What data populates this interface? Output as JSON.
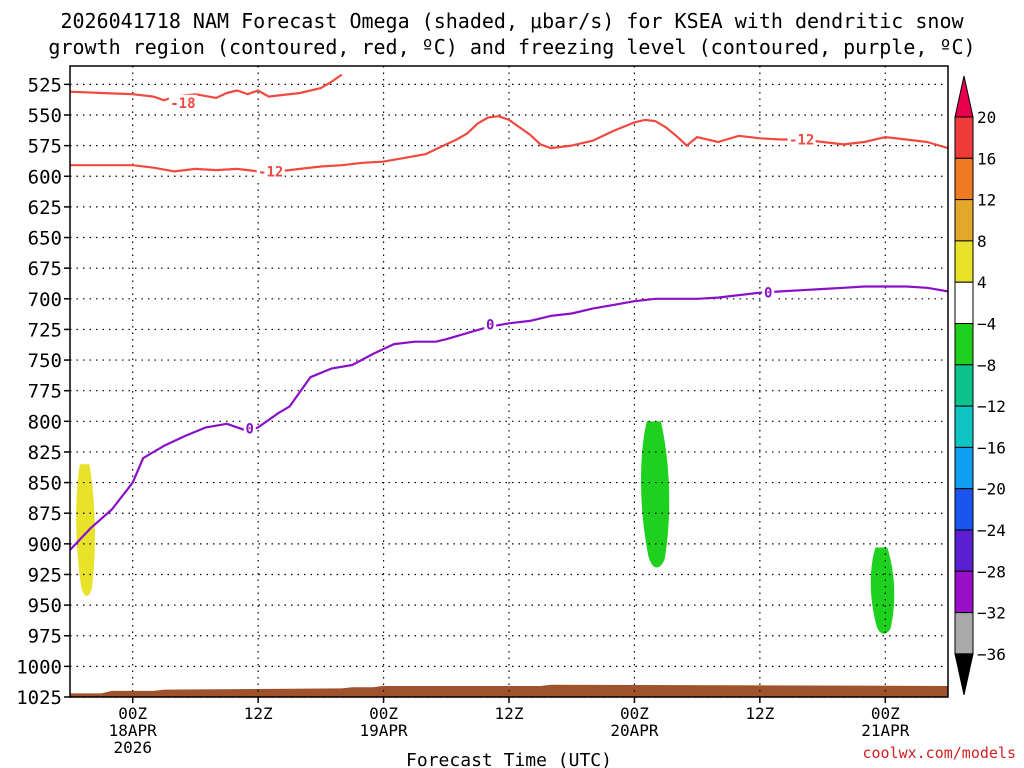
{
  "title_line1": "2026041718 NAM Forecast Omega (shaded, μbar/s) for KSEA with dendritic snow",
  "title_line2": "growth region (contoured, red, ºC) and freezing level (contoured, purple, ºC)",
  "credit": "coolwx.com/models",
  "chart_data": {
    "type": "time-height cross section",
    "xlabel": "Forecast Time (UTC)",
    "x_ticks": [
      {
        "hour": 6,
        "label": "00Z",
        "sub1": "18APR",
        "sub2": "2026"
      },
      {
        "hour": 18,
        "label": "12Z"
      },
      {
        "hour": 30,
        "label": "00Z",
        "sub1": "19APR"
      },
      {
        "hour": 42,
        "label": "12Z"
      },
      {
        "hour": 54,
        "label": "00Z",
        "sub1": "20APR"
      },
      {
        "hour": 66,
        "label": "12Z"
      },
      {
        "hour": 78,
        "label": "00Z",
        "sub1": "21APR"
      }
    ],
    "xlim": [
      0,
      84
    ],
    "ylim_hPa": [
      1025,
      510
    ],
    "y_ticks": [
      525,
      550,
      575,
      600,
      625,
      650,
      675,
      700,
      725,
      750,
      775,
      800,
      825,
      850,
      875,
      900,
      925,
      950,
      975,
      1000,
      1025
    ],
    "grid": true,
    "colorbar": {
      "labels": [
        "20",
        "16",
        "12",
        "8",
        "4",
        "−4",
        "−8",
        "−12",
        "−16",
        "−20",
        "−24",
        "−28",
        "−32",
        "−36"
      ],
      "colors": [
        "#e8004f",
        "#f03b3b",
        "#f07a22",
        "#e2a82a",
        "#e8e22a",
        "#ffffff",
        "#1fd11f",
        "#0dc38b",
        "#10c4c4",
        "#109ef0",
        "#1a55ee",
        "#5a1fd0",
        "#9a10c8",
        "#aaaaaa",
        "#000000"
      ]
    },
    "omega_shading": [
      {
        "color": "#e8e22a",
        "range": "4 to 8",
        "hours": [
          0.5,
          2.5
        ],
        "p_top": 835,
        "p_bottom": 945
      },
      {
        "color": "#1fd11f",
        "range": "-4 to -8",
        "hours": [
          54.5,
          57.5
        ],
        "p_top": 800,
        "p_bottom": 922
      },
      {
        "color": "#1fd11f",
        "range": "-4 to -8",
        "hours": [
          76.5,
          79.0
        ],
        "p_top": 903,
        "p_bottom": 975
      }
    ],
    "series": [
      {
        "name": "-18",
        "color": "#f04a40",
        "points": [
          [
            0,
            531
          ],
          [
            3,
            532
          ],
          [
            6,
            533
          ],
          [
            8,
            535
          ],
          [
            9,
            538
          ],
          [
            10,
            535
          ],
          [
            12,
            533
          ],
          [
            14,
            536
          ],
          [
            15,
            532
          ],
          [
            16,
            530
          ],
          [
            17,
            533
          ],
          [
            18,
            530
          ],
          [
            19,
            535
          ],
          [
            20,
            534
          ],
          [
            22,
            532
          ],
          [
            24,
            528
          ],
          [
            25,
            523
          ],
          [
            26,
            517
          ]
        ]
      },
      {
        "name": "-12",
        "color": "#f04a40",
        "points": [
          [
            0,
            591
          ],
          [
            3,
            591
          ],
          [
            6,
            591
          ],
          [
            8,
            593
          ],
          [
            10,
            596
          ],
          [
            12,
            594
          ],
          [
            14,
            595
          ],
          [
            16,
            594
          ],
          [
            18,
            596
          ],
          [
            20,
            596
          ],
          [
            22,
            594
          ],
          [
            24,
            592
          ],
          [
            26,
            591
          ],
          [
            28,
            589
          ],
          [
            30,
            588
          ],
          [
            32,
            585
          ],
          [
            34,
            582
          ],
          [
            35,
            578
          ],
          [
            37,
            570
          ],
          [
            38,
            565
          ],
          [
            39,
            557
          ],
          [
            40,
            552
          ],
          [
            41,
            551
          ],
          [
            42,
            554
          ],
          [
            44,
            566
          ],
          [
            45,
            574
          ],
          [
            46,
            577
          ],
          [
            48,
            575
          ],
          [
            50,
            571
          ],
          [
            52,
            563
          ],
          [
            54,
            556
          ],
          [
            55,
            554
          ],
          [
            56,
            555
          ],
          [
            57,
            560
          ],
          [
            58,
            567
          ],
          [
            59,
            575
          ],
          [
            60,
            568
          ],
          [
            62,
            572
          ],
          [
            64,
            567
          ],
          [
            66,
            569
          ],
          [
            68,
            570
          ],
          [
            70,
            570
          ],
          [
            72,
            572
          ],
          [
            74,
            574
          ],
          [
            76,
            572
          ],
          [
            78,
            568
          ],
          [
            80,
            570
          ],
          [
            82,
            572
          ],
          [
            84,
            577
          ]
        ]
      },
      {
        "name": "0",
        "color": "#8a10c8",
        "points": [
          [
            0,
            905
          ],
          [
            2,
            887
          ],
          [
            4,
            872
          ],
          [
            6,
            850
          ],
          [
            7,
            830
          ],
          [
            9,
            820
          ],
          [
            11,
            812
          ],
          [
            13,
            805
          ],
          [
            15,
            802
          ],
          [
            17,
            808
          ],
          [
            18,
            805
          ],
          [
            20,
            793
          ],
          [
            21,
            788
          ],
          [
            22,
            776
          ],
          [
            23,
            764
          ],
          [
            25,
            757
          ],
          [
            27,
            754
          ],
          [
            29,
            745
          ],
          [
            31,
            737
          ],
          [
            33,
            735
          ],
          [
            35,
            735
          ],
          [
            36,
            733
          ],
          [
            38,
            728
          ],
          [
            40,
            723
          ],
          [
            42,
            720
          ],
          [
            44,
            718
          ],
          [
            46,
            714
          ],
          [
            48,
            712
          ],
          [
            50,
            708
          ],
          [
            52,
            705
          ],
          [
            54,
            702
          ],
          [
            56,
            700
          ],
          [
            58,
            700
          ],
          [
            60,
            700
          ],
          [
            62,
            699
          ],
          [
            64,
            697
          ],
          [
            66,
            695
          ],
          [
            68,
            694
          ],
          [
            70,
            693
          ],
          [
            72,
            692
          ],
          [
            74,
            691
          ],
          [
            76,
            690
          ],
          [
            78,
            690
          ],
          [
            80,
            690
          ],
          [
            82,
            691
          ],
          [
            84,
            694
          ]
        ]
      }
    ],
    "contour_labels": [
      {
        "text": "-18",
        "hour": 10.8,
        "p": 540
      },
      {
        "text": "-12",
        "hour": 19.2,
        "p": 596
      },
      {
        "text": "-12",
        "hour": 70.0,
        "p": 570
      },
      {
        "text": "0",
        "hour": 17.2,
        "p": 806
      },
      {
        "text": "0",
        "hour": 40.2,
        "p": 721
      },
      {
        "text": "0",
        "hour": 66.8,
        "p": 695
      }
    ],
    "terrain": {
      "color": "#a0522d",
      "points": [
        [
          0,
          1022
        ],
        [
          3,
          1022
        ],
        [
          4,
          1020
        ],
        [
          8,
          1020
        ],
        [
          9,
          1019
        ],
        [
          26,
          1018
        ],
        [
          27,
          1017
        ],
        [
          29,
          1017
        ],
        [
          30,
          1016
        ],
        [
          45,
          1016
        ],
        [
          46,
          1015
        ],
        [
          84,
          1016
        ]
      ]
    }
  }
}
